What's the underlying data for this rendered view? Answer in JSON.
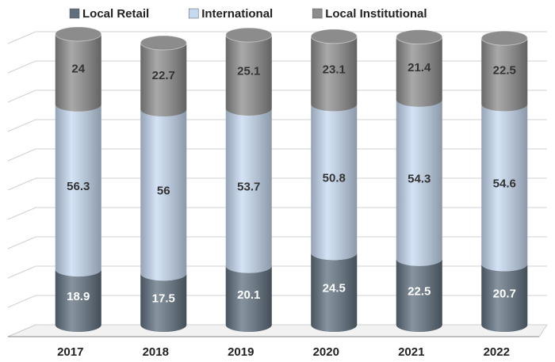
{
  "chart_data": {
    "type": "stacked_bar",
    "categories": [
      "2017",
      "2018",
      "2019",
      "2020",
      "2021",
      "2022"
    ],
    "series": [
      {
        "name": "Local Retail",
        "color": "#5f6f7e",
        "values": [
          18.9,
          17.5,
          20.1,
          24.5,
          22.5,
          20.7
        ]
      },
      {
        "name": "International",
        "color": "#c5d9f1",
        "values": [
          56.3,
          56.0,
          53.7,
          50.8,
          54.3,
          54.6
        ]
      },
      {
        "name": "Local Institutional",
        "color": "#8c8c8c",
        "values": [
          24.0,
          22.7,
          25.1,
          23.1,
          21.4,
          22.5
        ]
      }
    ],
    "ylim": [
      0,
      100
    ],
    "yticks": [
      0,
      10,
      20,
      30,
      40,
      50,
      60,
      70,
      80,
      90,
      100
    ],
    "grid": true,
    "legend": "top"
  }
}
